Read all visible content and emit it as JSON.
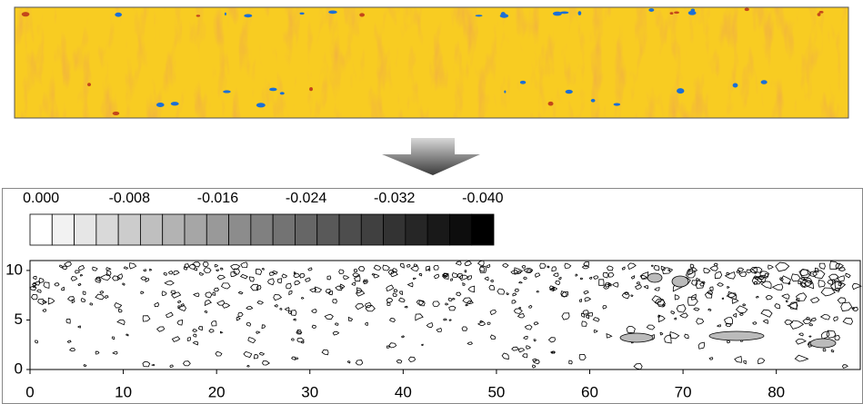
{
  "chart_data": {
    "type": "contour",
    "colorbar": {
      "lim": [
        0,
        -0.04
      ],
      "ticks": [
        {
          "value": 0,
          "label": "0.000"
        },
        {
          "value": -0.008,
          "label": "-0.008"
        },
        {
          "value": -0.016,
          "label": "-0.016"
        },
        {
          "value": -0.024,
          "label": "-0.024"
        },
        {
          "value": -0.032,
          "label": "-0.032"
        },
        {
          "value": -0.04,
          "label": "-0.040"
        }
      ]
    },
    "xlim": [
      0,
      89
    ],
    "xticks": [
      0,
      10,
      20,
      30,
      40,
      50,
      60,
      70,
      80
    ],
    "ylim": [
      0,
      11
    ],
    "yticks": [
      0,
      5,
      10
    ]
  }
}
